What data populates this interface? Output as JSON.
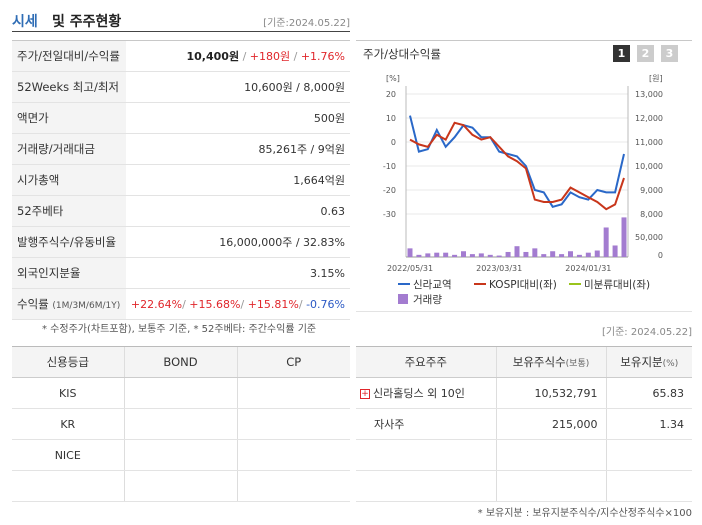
{
  "header": {
    "title_accent": "시세",
    "title_rest": "및 주주현황",
    "date": "[기준:2024.05.22]"
  },
  "summary": [
    {
      "label": "주가/전일대비/수익률",
      "price": "10,400원",
      "change": "+180원",
      "rate": "+1.76%"
    },
    {
      "label": "52Weeks 최고/최저",
      "value": "10,600원 / 8,000원"
    },
    {
      "label": "액면가",
      "value": "500원"
    },
    {
      "label": "거래량/거래대금",
      "value": "85,261주 / 9억원"
    },
    {
      "label": "시가총액",
      "value": "1,664억원"
    },
    {
      "label": "52주베타",
      "value": "0.63"
    },
    {
      "label": "발행주식수/유동비율",
      "value": "16,000,000주 / 32.83%"
    },
    {
      "label": "외국인지분율",
      "value": "3.15%"
    },
    {
      "label": "수익률",
      "label_sub": "(1M/3M/6M/1Y)",
      "r1": "+22.64%",
      "r2": "+15.68%",
      "r3": "+15.81%",
      "r4": "-0.76%"
    }
  ],
  "note_left": "* 수정주가(차트포함), 보통주 기준, * 52주베타: 주간수익률 기준",
  "chart": {
    "title": "주가/상대수익률",
    "buttons": [
      "1",
      "2",
      "3"
    ],
    "left_unit": "[%]",
    "right_unit": "[원]",
    "left_ticks": [
      "20",
      "10",
      "0",
      "-10",
      "-20",
      "-30"
    ],
    "right_ticks": [
      "13,000",
      "12,000",
      "11,000",
      "10,000",
      "9,000",
      "8,000"
    ],
    "vol_ticks": [
      "50,000",
      "0"
    ],
    "x_ticks": [
      "2022/05/31",
      "2023/03/31",
      "2024/01/31"
    ],
    "legend": [
      "신라교역",
      "KOSPI대비(좌)",
      "미분류대비(좌)",
      "거래량"
    ],
    "colors": {
      "stock": "#2a68c8",
      "kospi": "#c8361b",
      "misc": "#9ac41c",
      "volume": "#a37cd0"
    }
  },
  "chart_data": {
    "type": "line",
    "x": [
      "2022/05/31",
      "2022/06/30",
      "2022/07/31",
      "2022/08/31",
      "2022/09/30",
      "2022/10/31",
      "2022/11/30",
      "2022/12/31",
      "2023/01/31",
      "2023/02/28",
      "2023/03/31",
      "2023/04/30",
      "2023/05/31",
      "2023/06/30",
      "2023/07/31",
      "2023/08/31",
      "2023/09/30",
      "2023/10/31",
      "2023/11/30",
      "2023/12/31",
      "2024/01/31",
      "2024/02/29",
      "2024/03/31",
      "2024/04/30",
      "2024/05/22"
    ],
    "series": [
      {
        "name": "신라교역",
        "axis": "left",
        "values": [
          11,
          -4,
          -3,
          5,
          -2,
          2,
          7,
          6,
          2,
          2,
          -4,
          -5,
          -6,
          -10,
          -20,
          -21,
          -27,
          -26,
          -21,
          -23,
          -24,
          -20,
          -21,
          -21,
          -5
        ]
      },
      {
        "name": "KOSPI대비(좌)",
        "axis": "left",
        "values": [
          1,
          -1,
          -2,
          3,
          1,
          8,
          7,
          3,
          1,
          2,
          -2,
          -6,
          -8,
          -11,
          -24,
          -25,
          -25,
          -24,
          -19,
          -21,
          -23,
          -25,
          -28,
          -26,
          -15
        ]
      },
      {
        "name": "거래량",
        "axis": "volume",
        "values": [
          12000,
          3000,
          5000,
          6000,
          6000,
          3000,
          8000,
          4000,
          5000,
          3000,
          2000,
          7000,
          15000,
          7000,
          12000,
          4000,
          8000,
          4000,
          8000,
          3000,
          6000,
          9000,
          41000,
          16000,
          55000
        ]
      }
    ],
    "ylim_left": [
      -30,
      20
    ],
    "ylim_right": [
      8000,
      13000
    ],
    "ylim_volume": [
      0,
      50000
    ]
  },
  "date_right": "[기준: 2024.05.22]",
  "credit": {
    "headers": [
      "신용등급",
      "BOND",
      "CP"
    ],
    "rows": [
      [
        "KIS",
        "",
        ""
      ],
      [
        "KR",
        "",
        ""
      ],
      [
        "NICE",
        "",
        ""
      ],
      [
        "",
        "",
        ""
      ]
    ]
  },
  "holders": {
    "headers": {
      "name": "주요주주",
      "shares": "보유주식수",
      "shares_unit": "(보통)",
      "ratio": "보유지분",
      "ratio_unit": "(%)"
    },
    "rows": [
      {
        "name": "신라홀딩스 외 10인",
        "shares": "10,532,791",
        "ratio": "65.83"
      },
      {
        "name": "자사주",
        "shares": "215,000",
        "ratio": "1.34"
      },
      {
        "name": "",
        "shares": "",
        "ratio": ""
      },
      {
        "name": "",
        "shares": "",
        "ratio": ""
      }
    ]
  },
  "note_right": "* 보유지분 : 보유지분주식수/지수산정주식수×100"
}
